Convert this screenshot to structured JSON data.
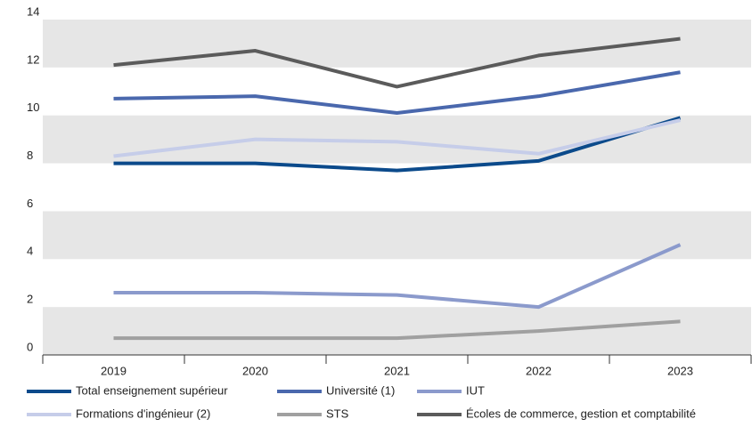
{
  "chart_data": {
    "type": "line",
    "categories": [
      "2019",
      "2020",
      "2021",
      "2022",
      "2023"
    ],
    "series": [
      {
        "name": "Total enseignement supérieur",
        "color": "#0b4a8b",
        "values": [
          8.0,
          8.0,
          7.7,
          8.1,
          9.9
        ]
      },
      {
        "name": "Université (1)",
        "color": "#4a68ad",
        "values": [
          10.7,
          10.8,
          10.1,
          10.8,
          11.8
        ]
      },
      {
        "name": "IUT",
        "color": "#8b9acc",
        "values": [
          2.6,
          2.6,
          2.5,
          2.0,
          4.6
        ]
      },
      {
        "name": "Formations d'ingénieur (2)",
        "color": "#c6cde9",
        "values": [
          8.3,
          9.0,
          8.9,
          8.4,
          9.8
        ]
      },
      {
        "name": "STS",
        "color": "#a0a0a0",
        "values": [
          0.7,
          0.7,
          0.7,
          1.0,
          1.4
        ]
      },
      {
        "name": "Écoles de commerce, gestion et comptabilité",
        "color": "#5b5b5b",
        "values": [
          12.1,
          12.7,
          11.2,
          12.5,
          13.2
        ]
      }
    ],
    "ylim": [
      0,
      14
    ],
    "yticks": [
      0,
      2,
      4,
      6,
      8,
      10,
      12,
      14
    ],
    "grid": true
  }
}
